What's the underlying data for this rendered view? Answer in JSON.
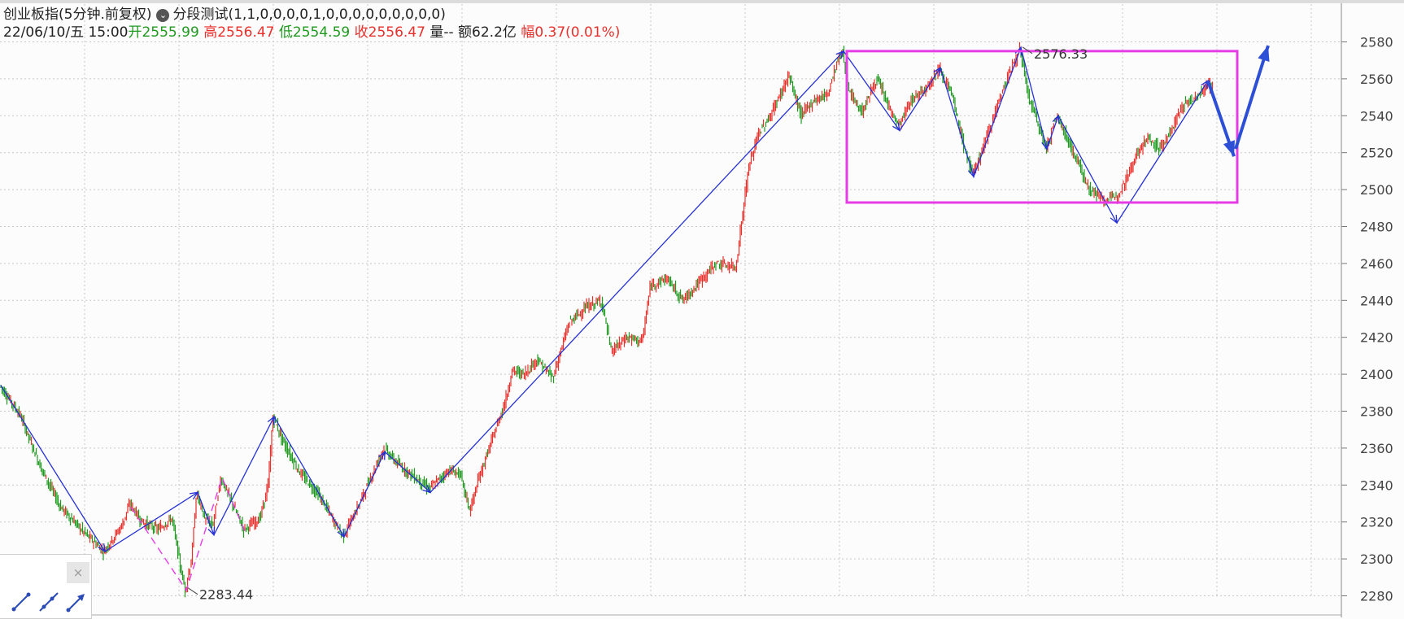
{
  "header": {
    "symbol": "创业板指(5分钟.前复权)",
    "indicator_name": "分段测试(1,1,0,0,0,0,1,0,0,0,0,0,0,0,0,0)",
    "date_time": "22/06/10/五 15:00",
    "open_label": "开",
    "open_value": "2555.99",
    "high_label": "高",
    "high_value": "2556.47",
    "low_label": "低",
    "low_value": "2554.59",
    "close_label": "收",
    "close_value": "2556.47",
    "volume_label": "量--",
    "amount_label": "额",
    "amount_value": "62.2亿",
    "change_label": "幅",
    "change_value": "0.37(0.01%)"
  },
  "colors": {
    "up": "#e8302c",
    "down": "#1f9a1f",
    "zigzag": "#2530d6",
    "highlight": "#e63ce6",
    "arrow": "#2d4fd6",
    "grid": "#c8c8c8"
  },
  "toolbar": {
    "close_symbol": "×",
    "tools": [
      "line-tool-icon",
      "ray-tool-icon",
      "arrow-line-tool-icon"
    ]
  },
  "chart_data": {
    "type": "candlestick",
    "title": "创业板指(5分钟.前复权)",
    "ylim": [
      2270,
      2590
    ],
    "y_ticks": [
      2280,
      2300,
      2320,
      2340,
      2360,
      2380,
      2400,
      2420,
      2440,
      2460,
      2480,
      2500,
      2520,
      2540,
      2560,
      2580
    ],
    "grid": true,
    "x_bars": 600,
    "price_path": [
      [
        0,
        2394
      ],
      [
        25,
        2378
      ],
      [
        50,
        2350
      ],
      [
        75,
        2328
      ],
      [
        100,
        2316
      ],
      [
        128,
        2304
      ],
      [
        150,
        2318
      ],
      [
        160,
        2330
      ],
      [
        175,
        2320
      ],
      [
        195,
        2316
      ],
      [
        212,
        2322
      ],
      [
        222,
        2296
      ],
      [
        228,
        2283
      ],
      [
        236,
        2300
      ],
      [
        242,
        2336
      ],
      [
        252,
        2322
      ],
      [
        262,
        2318
      ],
      [
        272,
        2344
      ],
      [
        288,
        2328
      ],
      [
        300,
        2316
      ],
      [
        320,
        2322
      ],
      [
        330,
        2340
      ],
      [
        336,
        2377
      ],
      [
        350,
        2362
      ],
      [
        370,
        2346
      ],
      [
        390,
        2336
      ],
      [
        405,
        2325
      ],
      [
        422,
        2312
      ],
      [
        440,
        2328
      ],
      [
        458,
        2346
      ],
      [
        472,
        2360
      ],
      [
        488,
        2352
      ],
      [
        505,
        2346
      ],
      [
        528,
        2338
      ],
      [
        552,
        2348
      ],
      [
        566,
        2346
      ],
      [
        578,
        2326
      ],
      [
        590,
        2345
      ],
      [
        608,
        2368
      ],
      [
        622,
        2386
      ],
      [
        630,
        2402
      ],
      [
        645,
        2400
      ],
      [
        660,
        2408
      ],
      [
        680,
        2398
      ],
      [
        700,
        2428
      ],
      [
        720,
        2436
      ],
      [
        740,
        2440
      ],
      [
        752,
        2412
      ],
      [
        770,
        2420
      ],
      [
        790,
        2418
      ],
      [
        800,
        2448
      ],
      [
        820,
        2452
      ],
      [
        840,
        2440
      ],
      [
        860,
        2450
      ],
      [
        880,
        2460
      ],
      [
        905,
        2458
      ],
      [
        912,
        2482
      ],
      [
        920,
        2510
      ],
      [
        932,
        2530
      ],
      [
        945,
        2538
      ],
      [
        958,
        2550
      ],
      [
        970,
        2562
      ],
      [
        985,
        2540
      ],
      [
        1000,
        2548
      ],
      [
        1018,
        2552
      ],
      [
        1030,
        2570
      ],
      [
        1036,
        2575
      ],
      [
        1045,
        2552
      ],
      [
        1060,
        2542
      ],
      [
        1078,
        2560
      ],
      [
        1090,
        2548
      ],
      [
        1105,
        2534
      ],
      [
        1120,
        2548
      ],
      [
        1140,
        2556
      ],
      [
        1155,
        2566
      ],
      [
        1170,
        2552
      ],
      [
        1185,
        2524
      ],
      [
        1196,
        2508
      ],
      [
        1210,
        2524
      ],
      [
        1225,
        2544
      ],
      [
        1240,
        2562
      ],
      [
        1254,
        2576
      ],
      [
        1265,
        2550
      ],
      [
        1276,
        2536
      ],
      [
        1286,
        2522
      ],
      [
        1300,
        2540
      ],
      [
        1320,
        2520
      ],
      [
        1340,
        2500
      ],
      [
        1358,
        2494
      ],
      [
        1372,
        2496
      ],
      [
        1385,
        2506
      ],
      [
        1398,
        2520
      ],
      [
        1412,
        2528
      ],
      [
        1426,
        2522
      ],
      [
        1440,
        2532
      ],
      [
        1455,
        2546
      ],
      [
        1470,
        2550
      ],
      [
        1484,
        2556
      ],
      [
        1490,
        2556
      ]
    ],
    "zigzag_main": [
      [
        0,
        2394
      ],
      [
        128,
        2304
      ],
      [
        242,
        2336
      ],
      [
        262,
        2313
      ],
      [
        336,
        2377
      ],
      [
        422,
        2312
      ],
      [
        472,
        2358
      ],
      [
        528,
        2336
      ],
      [
        1036,
        2575
      ],
      [
        1105,
        2532
      ],
      [
        1155,
        2566
      ],
      [
        1196,
        2507
      ],
      [
        1254,
        2577
      ],
      [
        1286,
        2522
      ],
      [
        1300,
        2540
      ],
      [
        1372,
        2482
      ],
      [
        1484,
        2559
      ]
    ],
    "zigzag_sub": [
      [
        160,
        2328
      ],
      [
        228,
        2283
      ],
      [
        272,
        2344
      ],
      [
        300,
        2315
      ]
    ],
    "box": {
      "x_from": 1040,
      "x_to": 1520,
      "y_from": 2493,
      "y_to": 2575
    },
    "annotations": [
      {
        "text": "2576.33",
        "at": [
          1254,
          2576.33
        ]
      },
      {
        "text": "2283.44",
        "at": [
          228,
          2283.44
        ]
      }
    ],
    "arrows": [
      {
        "from": [
          1484,
          2559
        ],
        "to": [
          1516,
          2518
        ]
      },
      {
        "from": [
          1518,
          2522
        ],
        "to": [
          1558,
          2578
        ]
      }
    ]
  }
}
